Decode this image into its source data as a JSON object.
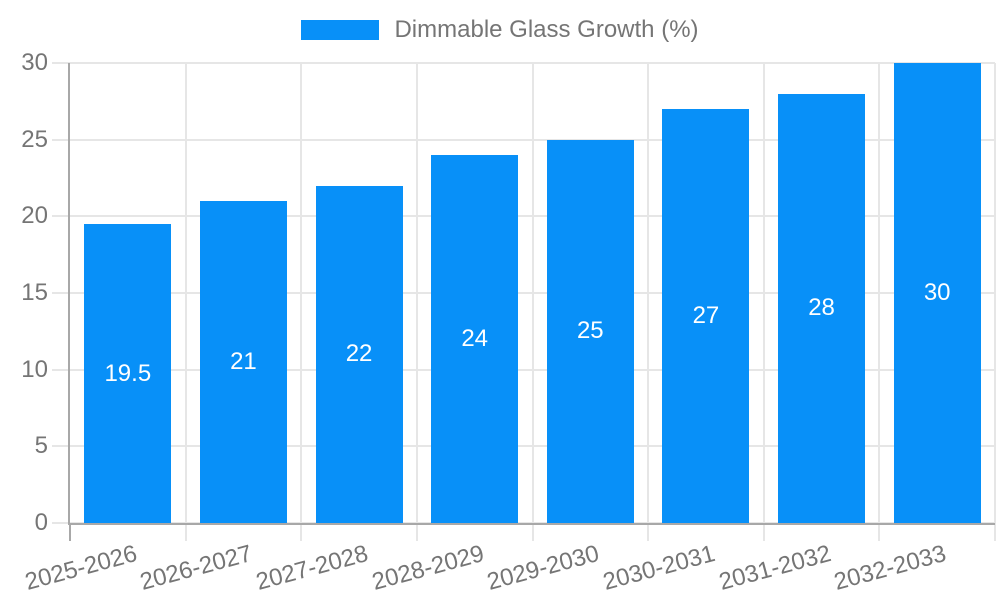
{
  "chart_data": {
    "type": "bar",
    "title": "",
    "xlabel": "",
    "ylabel": "",
    "categories": [
      "2025-2026",
      "2026-2027",
      "2027-2028",
      "2028-2029",
      "2029-2030",
      "2030-2031",
      "2031-2032",
      "2032-2033"
    ],
    "series": [
      {
        "name": "Dimmable Glass Growth (%)",
        "values": [
          19.5,
          21,
          22,
          24,
          25,
          27,
          28,
          30
        ]
      }
    ],
    "value_labels": [
      "19.5",
      "21",
      "22",
      "24",
      "25",
      "27",
      "28",
      "30"
    ],
    "ylim": [
      0,
      30
    ],
    "yticks": [
      0,
      5,
      10,
      15,
      20,
      25,
      30
    ],
    "legend_position": "top",
    "grid": true,
    "colors": {
      "bar": "#0890f8",
      "value_label": "#ffffff",
      "tick_text": "#757575",
      "grid": "#e6e6e6",
      "axis": "#a8a8a8"
    }
  }
}
